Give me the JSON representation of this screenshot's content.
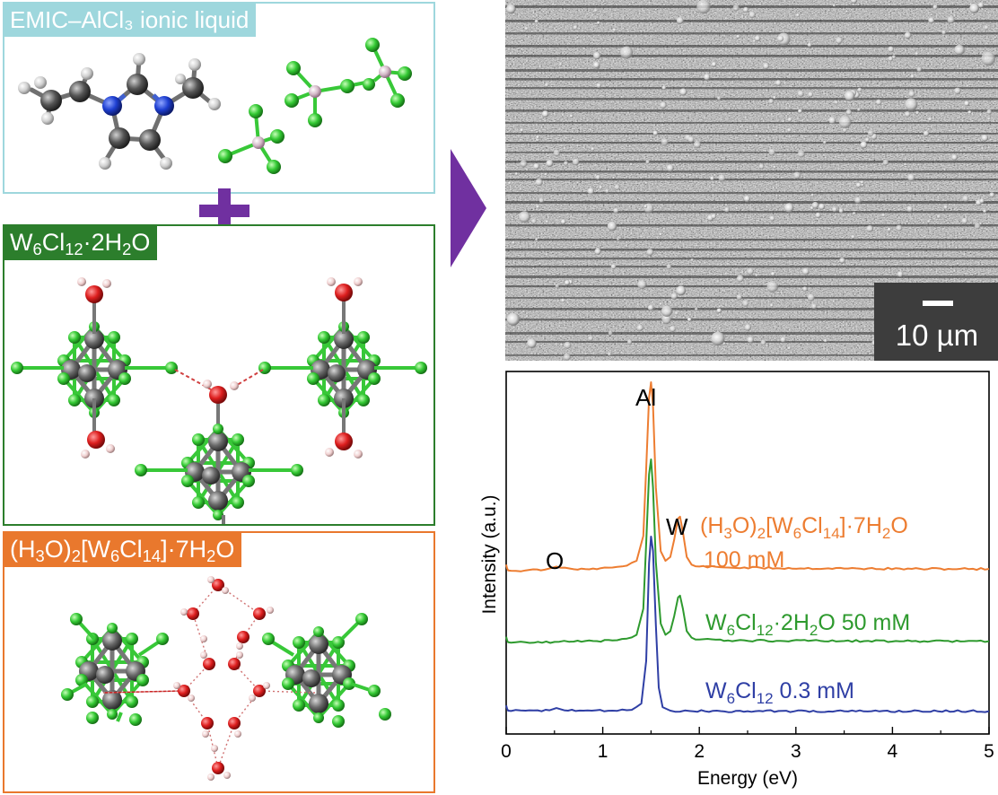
{
  "panels": {
    "ionic_liquid": {
      "title": "EMIC–AlCl₃ ionic liquid",
      "color": "#9ed7dd"
    },
    "cluster_hydrate": {
      "color": "#2c7e2c"
    },
    "hydronium_salt": {
      "color": "#e9782d"
    }
  },
  "sem": {
    "scale_label": "10 µm"
  },
  "spectrum": {
    "xlabel": "Energy (eV)",
    "ylabel": "Intensity (a.u.)",
    "peak_labels": [
      "Al",
      "W",
      "O"
    ]
  },
  "colors": {
    "plus": "#7030a0",
    "arrow": "#7030a0",
    "green_cl": "#3fd13f",
    "tungsten": "#6e6e6e",
    "oxygen": "#dd2020"
  },
  "chart_data": {
    "type": "line",
    "xlim": [
      0,
      5
    ],
    "xticks": [
      0,
      1,
      2,
      3,
      4,
      5
    ],
    "xlabel": "Energy (eV)",
    "ylabel": "Intensity (a.u.)",
    "grid": false,
    "series": [
      {
        "name": "(H₃O)₂[W₆Cl₁₄]·7H₂O 100 mM",
        "color": "#ed7d31",
        "x": [
          0,
          0.01,
          0.02,
          0.05,
          0.2,
          0.4,
          0.48,
          0.52,
          0.56,
          0.7,
          0.9,
          1.1,
          1.25,
          1.35,
          1.42,
          1.45,
          1.48,
          1.5,
          1.52,
          1.55,
          1.6,
          1.65,
          1.7,
          1.74,
          1.78,
          1.8,
          1.83,
          1.87,
          1.92,
          2.0,
          2.3,
          2.8,
          3.5,
          4.2,
          5.0
        ],
        "y": [
          0.05,
          0.03,
          0.02,
          0.018,
          0.02,
          0.024,
          0.034,
          0.04,
          0.034,
          0.026,
          0.03,
          0.035,
          0.045,
          0.07,
          0.2,
          0.55,
          0.92,
          1.0,
          0.88,
          0.45,
          0.12,
          0.07,
          0.09,
          0.18,
          0.29,
          0.3,
          0.22,
          0.09,
          0.05,
          0.04,
          0.035,
          0.032,
          0.03,
          0.028,
          0.028
        ]
      },
      {
        "name": "W₆Cl₁₂·2H₂O 50 mM",
        "color": "#2e9a2e",
        "x": [
          0,
          0.01,
          0.02,
          0.05,
          0.2,
          0.5,
          0.7,
          0.9,
          1.1,
          1.25,
          1.35,
          1.42,
          1.45,
          1.48,
          1.5,
          1.52,
          1.55,
          1.6,
          1.65,
          1.7,
          1.74,
          1.78,
          1.8,
          1.83,
          1.87,
          1.92,
          2.0,
          2.3,
          2.8,
          3.5,
          4.2,
          5.0
        ],
        "y": [
          0.05,
          0.03,
          0.02,
          0.018,
          0.02,
          0.022,
          0.024,
          0.027,
          0.03,
          0.04,
          0.06,
          0.2,
          0.55,
          0.92,
          1.0,
          0.85,
          0.45,
          0.12,
          0.06,
          0.08,
          0.16,
          0.26,
          0.27,
          0.2,
          0.08,
          0.045,
          0.035,
          0.03,
          0.028,
          0.027,
          0.026,
          0.026
        ]
      },
      {
        "name": "W₆Cl₁₂ 0.3 mM",
        "color": "#2f3fa5",
        "x": [
          0,
          0.01,
          0.02,
          0.05,
          0.2,
          0.45,
          0.52,
          0.6,
          0.8,
          1.1,
          1.3,
          1.4,
          1.45,
          1.48,
          1.5,
          1.52,
          1.55,
          1.58,
          1.62,
          1.7,
          1.9,
          2.5,
          3.5,
          5.0
        ],
        "y": [
          0.05,
          0.03,
          0.02,
          0.018,
          0.02,
          0.022,
          0.035,
          0.022,
          0.02,
          0.02,
          0.025,
          0.06,
          0.3,
          0.85,
          1.0,
          0.92,
          0.5,
          0.15,
          0.04,
          0.02,
          0.018,
          0.017,
          0.017,
          0.017
        ]
      }
    ]
  }
}
